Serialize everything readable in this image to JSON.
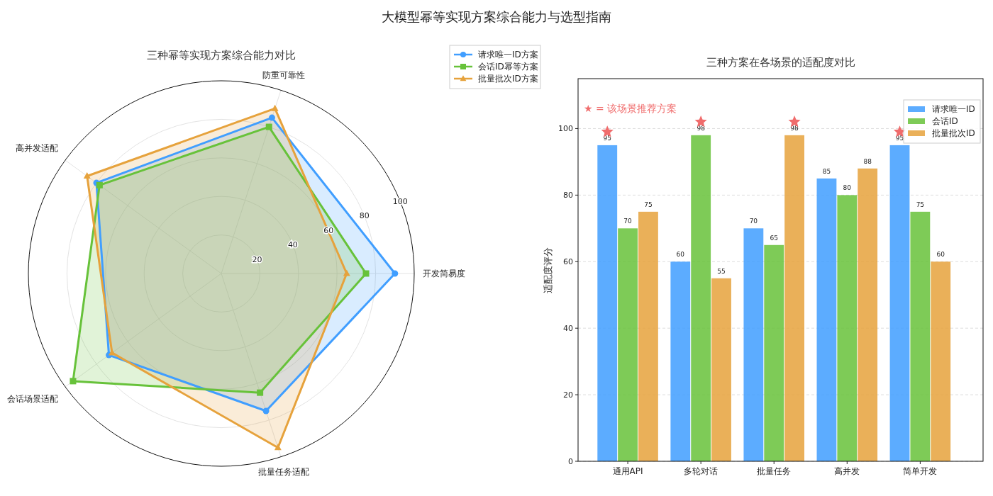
{
  "chart_data": [
    {
      "type": "radar",
      "title": "三种幂等实现方案综合能力对比",
      "annotations": [
        "大模型幂等实现方案综合能力与选型指南"
      ],
      "categories": [
        "防重可靠性",
        "开发简易度",
        "批量任务适配",
        "会话场景适配",
        "高并发适配"
      ],
      "ylim": [
        0,
        100
      ],
      "yticks": [
        20,
        40,
        60,
        80,
        100
      ],
      "grid": true,
      "legend": "top right",
      "series": [
        {
          "name": "请求唯一ID方案",
          "color": "#409eff",
          "marker": "circle",
          "values": [
            85,
            90,
            75,
            72,
            80
          ]
        },
        {
          "name": "会话ID幂等方案",
          "color": "#67c23a",
          "marker": "square",
          "values": [
            80,
            75,
            65,
            95,
            78
          ]
        },
        {
          "name": "批量批次ID方案",
          "color": "#e6a23c",
          "marker": "triangle",
          "values": [
            90,
            65,
            95,
            70,
            86
          ]
        }
      ]
    },
    {
      "type": "bar",
      "title": "三种方案在各场景的适配度对比",
      "ylabel": "适配度评分",
      "categories": [
        "通用API",
        "多轮对话",
        "批量任务",
        "高并发",
        "简单开发"
      ],
      "ylim": [
        0,
        115
      ],
      "yticks": [
        0,
        20,
        40,
        60,
        80,
        100
      ],
      "grid": "y",
      "legend": "top right",
      "data_labels": true,
      "annotations": [
        "★ = 该场景推荐方案"
      ],
      "series": [
        {
          "name": "请求唯一ID",
          "color": "#409eff",
          "values": [
            95,
            60,
            70,
            85,
            95
          ]
        },
        {
          "name": "会话ID",
          "color": "#67c23a",
          "values": [
            70,
            98,
            65,
            80,
            75
          ]
        },
        {
          "name": "批量批次ID",
          "color": "#e6a23c",
          "values": [
            75,
            55,
            98,
            88,
            60
          ]
        },
        {
          "type": "scatter",
          "marker": "star",
          "color": "#f06c6c",
          "x": [
            "通用API",
            "多轮对话",
            "批量任务",
            "简单开发"
          ],
          "values": [
            99,
            102,
            102,
            99
          ],
          "value_labels": [
            null,
            null,
            null,
            null
          ]
        }
      ]
    }
  ]
}
